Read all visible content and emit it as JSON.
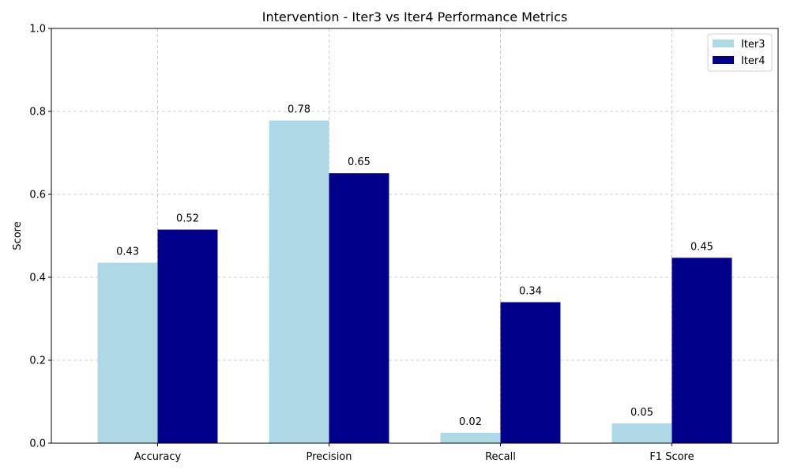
{
  "chart_data": {
    "type": "bar",
    "title": "Intervention - Iter3 vs Iter4 Performance Metrics",
    "xlabel": "",
    "ylabel": "Score",
    "ylim": [
      0,
      1.0
    ],
    "yticks": [
      "0.0",
      "0.2",
      "0.4",
      "0.6",
      "0.8",
      "1.0"
    ],
    "grid": true,
    "legend_position": "top-right",
    "categories": [
      "Accuracy",
      "Precision",
      "Recall",
      "F1 Score"
    ],
    "series": [
      {
        "name": "Iter3",
        "color": "#add8e6",
        "values": [
          0.435,
          0.778,
          0.025,
          0.048
        ],
        "labels": [
          "0.43",
          "0.78",
          "0.02",
          "0.05"
        ]
      },
      {
        "name": "Iter4",
        "color": "#00008b",
        "values": [
          0.515,
          0.651,
          0.34,
          0.447
        ],
        "labels": [
          "0.52",
          "0.65",
          "0.34",
          "0.45"
        ]
      }
    ]
  }
}
